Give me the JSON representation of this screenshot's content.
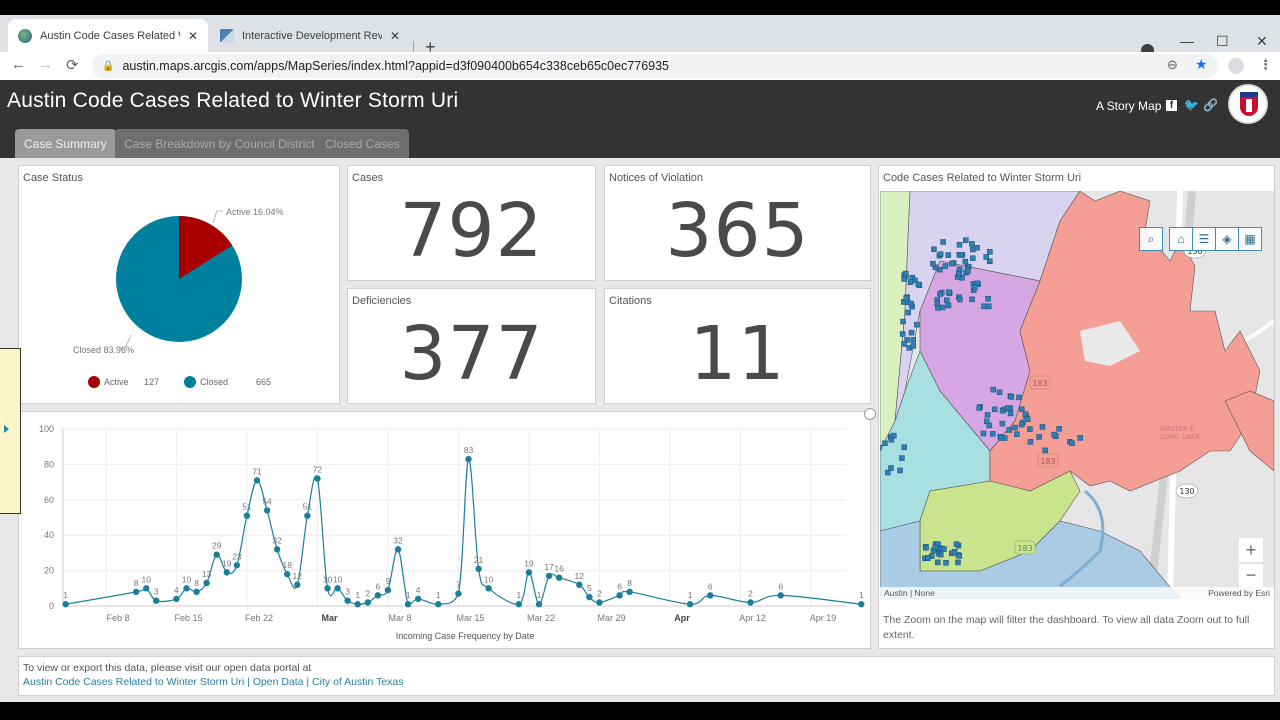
{
  "browser": {
    "tabs": [
      {
        "title": "Austin Code Cases Related to Winter Storm Uri",
        "display": "Austin Code Cases Related Winte",
        "active": true,
        "favicon": "globe-icon"
      },
      {
        "title": "Interactive Development Review",
        "display": "Interactive Development Review",
        "active": false,
        "favicon": "map-tile-icon"
      }
    ],
    "new_tab_label": "+",
    "close_glyph": "✕",
    "window_controls": {
      "minimize": "—",
      "maximize": "☐",
      "close": "✕"
    },
    "url": "austin.maps.arcgis.com/apps/MapSeries/index.html?appid=d3f090400b654c338ceb65c0ec776935",
    "nav": {
      "back": "←",
      "forward": "→",
      "reload": "⟳"
    },
    "omni_icons": {
      "zoom": "⊖",
      "bookmark": "★",
      "profile": "👤",
      "menu": "⋮"
    }
  },
  "app": {
    "title": "Austin Code Cases Related to Winter Storm Uri",
    "story_map_label": "A Story Map",
    "share_icons": [
      "facebook-icon",
      "twitter-icon",
      "link-icon"
    ],
    "tabs": [
      {
        "label": "Case Summary",
        "active": true
      },
      {
        "label": "Case Breakdown by Council District",
        "active": false
      },
      {
        "label": "Closed Cases",
        "active": false
      }
    ]
  },
  "case_status": {
    "title": "Case Status",
    "active_label": "Active 16.04%",
    "closed_label": "Closed 83.96%",
    "legend": [
      {
        "label": "Active",
        "count": "127",
        "color": "#a80000"
      },
      {
        "label": "Closed",
        "count": "665",
        "color": "#00809f"
      }
    ]
  },
  "indicators": {
    "cases": {
      "title": "Cases",
      "value": "792"
    },
    "notices": {
      "title": "Notices of Violation",
      "value": "365"
    },
    "deficiencies": {
      "title": "Deficiencies",
      "value": "377"
    },
    "citations": {
      "title": "Citations",
      "value": "11"
    }
  },
  "map": {
    "title": "Code Cases Related to Winter Storm Uri",
    "tools": [
      "search-icon",
      "home-icon",
      "legend-icon",
      "layers-icon",
      "basemap-gallery-icon"
    ],
    "zoom_in": "+",
    "zoom_out": "−",
    "attribution_left": "Austin | None",
    "attribution_right": "Powered by Esri",
    "note": "The Zoom on the map will filter the dashboard. To view all data Zoom out to full extent.",
    "labels": {
      "highway_130": "130",
      "highway_183": "183",
      "lake": "WALTER E. LONG LAKE"
    }
  },
  "footer": {
    "text": "To view or export this data, please visit our open data portal at",
    "link": "Austin Code Cases Related to Winter Storm Uri | Open Data | City of Austin Texas"
  },
  "chart_data": [
    {
      "type": "pie",
      "title": "Case Status",
      "categories": [
        "Active",
        "Closed"
      ],
      "values": [
        127,
        665
      ],
      "percentages": [
        16.04,
        83.96
      ],
      "colors": [
        "#a80000",
        "#00809f"
      ],
      "legend_position": "bottom"
    },
    {
      "type": "line",
      "title": "",
      "xlabel": "Incoming Case Frequency by Date",
      "ylabel": "",
      "ylim": [
        0,
        100
      ],
      "yticks": [
        0,
        20,
        40,
        60,
        80,
        100
      ],
      "xticks": [
        "Feb 8",
        "Feb 15",
        "Feb 22",
        "Mar",
        "Mar 8",
        "Mar 15",
        "Mar 22",
        "Mar 29",
        "Apr",
        "Apr 12",
        "Apr 19"
      ],
      "grid": true,
      "color": "#1b7f9a",
      "series": [
        {
          "name": "Incoming Cases",
          "points": [
            {
              "date": "2021-02-03",
              "value": 1
            },
            {
              "date": "2021-02-10",
              "value": 8
            },
            {
              "date": "2021-02-11",
              "value": 10
            },
            {
              "date": "2021-02-12",
              "value": 3
            },
            {
              "date": "2021-02-14",
              "value": 4
            },
            {
              "date": "2021-02-15",
              "value": 10
            },
            {
              "date": "2021-02-16",
              "value": 8
            },
            {
              "date": "2021-02-17",
              "value": 13
            },
            {
              "date": "2021-02-18",
              "value": 29
            },
            {
              "date": "2021-02-19",
              "value": 19
            },
            {
              "date": "2021-02-20",
              "value": 23
            },
            {
              "date": "2021-02-21",
              "value": 51
            },
            {
              "date": "2021-02-22",
              "value": 71
            },
            {
              "date": "2021-02-23",
              "value": 54
            },
            {
              "date": "2021-02-24",
              "value": 32
            },
            {
              "date": "2021-02-25",
              "value": 18
            },
            {
              "date": "2021-02-26",
              "value": 12
            },
            {
              "date": "2021-02-27",
              "value": 51
            },
            {
              "date": "2021-02-28",
              "value": 72
            },
            {
              "date": "2021-03-01",
              "value": 10
            },
            {
              "date": "2021-03-02",
              "value": 10
            },
            {
              "date": "2021-03-03",
              "value": 3
            },
            {
              "date": "2021-03-04",
              "value": 1
            },
            {
              "date": "2021-03-05",
              "value": 2
            },
            {
              "date": "2021-03-06",
              "value": 6
            },
            {
              "date": "2021-03-07",
              "value": 9
            },
            {
              "date": "2021-03-08",
              "value": 32
            },
            {
              "date": "2021-03-09",
              "value": 1
            },
            {
              "date": "2021-03-10",
              "value": 4
            },
            {
              "date": "2021-03-12",
              "value": 1
            },
            {
              "date": "2021-03-14",
              "value": 7
            },
            {
              "date": "2021-03-15",
              "value": 83
            },
            {
              "date": "2021-03-16",
              "value": 21
            },
            {
              "date": "2021-03-17",
              "value": 10
            },
            {
              "date": "2021-03-20",
              "value": 1
            },
            {
              "date": "2021-03-21",
              "value": 19
            },
            {
              "date": "2021-03-22",
              "value": 1
            },
            {
              "date": "2021-03-23",
              "value": 17
            },
            {
              "date": "2021-03-24",
              "value": 16
            },
            {
              "date": "2021-03-26",
              "value": 12
            },
            {
              "date": "2021-03-27",
              "value": 5
            },
            {
              "date": "2021-03-28",
              "value": 2
            },
            {
              "date": "2021-03-30",
              "value": 6
            },
            {
              "date": "2021-03-31",
              "value": 8
            },
            {
              "date": "2021-04-06",
              "value": 1
            },
            {
              "date": "2021-04-08",
              "value": 6
            },
            {
              "date": "2021-04-12",
              "value": 2
            },
            {
              "date": "2021-04-15",
              "value": 6
            },
            {
              "date": "2021-04-23",
              "value": 1
            }
          ]
        }
      ]
    }
  ]
}
